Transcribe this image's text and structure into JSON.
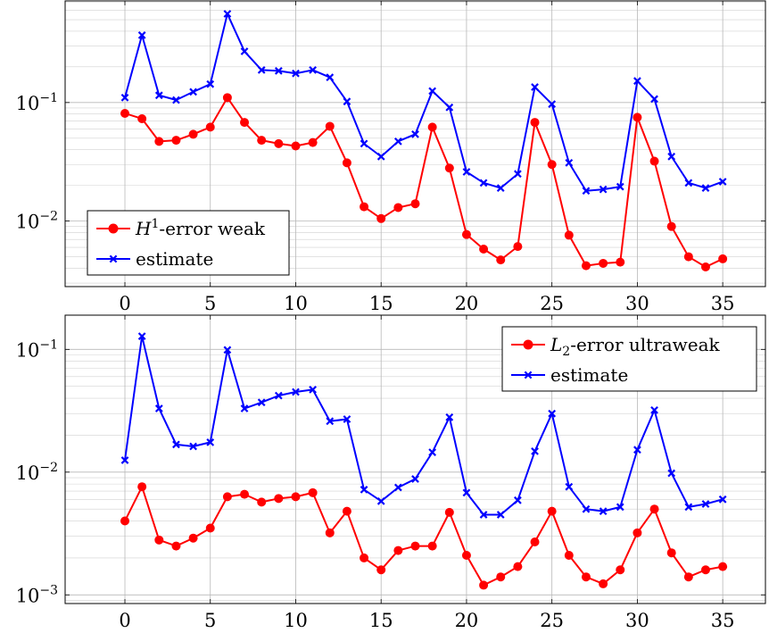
{
  "chart_data": [
    {
      "type": "line",
      "title": "",
      "xlabel": "",
      "ylabel": "",
      "yscale": "log",
      "xlim": [
        -3.5,
        37.5
      ],
      "ylim": [
        0.0028,
        0.72
      ],
      "grid": true,
      "legend_position": "bottom-left",
      "x_ticks": [
        0,
        5,
        10,
        15,
        20,
        25,
        30,
        35
      ],
      "x_tick_labels": [
        "0",
        "5",
        "10",
        "15",
        "20",
        "25",
        "30",
        "35"
      ],
      "y_ticks": [
        0.01,
        0.1
      ],
      "y_tick_labels": [
        {
          "base": "10",
          "exp": "−2"
        },
        {
          "base": "10",
          "exp": "−1"
        }
      ],
      "x": [
        0,
        1,
        2,
        3,
        4,
        5,
        6,
        7,
        8,
        9,
        10,
        11,
        12,
        13,
        14,
        15,
        16,
        17,
        18,
        19,
        20,
        21,
        22,
        23,
        24,
        25,
        26,
        27,
        28,
        29,
        30,
        31,
        32,
        33,
        34,
        35
      ],
      "series": [
        {
          "name_main": "H",
          "name_sup": "1",
          "name_rest": "-error weak",
          "color": "#ff0000",
          "marker": "circle",
          "values": [
            0.081,
            0.073,
            0.047,
            0.048,
            0.054,
            0.062,
            0.11,
            0.068,
            0.048,
            0.045,
            0.043,
            0.046,
            0.063,
            0.031,
            0.0132,
            0.0105,
            0.013,
            0.014,
            0.062,
            0.028,
            0.0077,
            0.0058,
            0.0047,
            0.0061,
            0.068,
            0.03,
            0.0076,
            0.0042,
            0.0044,
            0.0045,
            0.075,
            0.032,
            0.009,
            0.005,
            0.0041,
            0.0048
          ]
        },
        {
          "name_main": "estimate",
          "name_sup": "",
          "name_rest": "",
          "color": "#0000ff",
          "marker": "x",
          "values": [
            0.11,
            0.37,
            0.115,
            0.105,
            0.123,
            0.143,
            0.56,
            0.27,
            0.188,
            0.185,
            0.176,
            0.188,
            0.163,
            0.102,
            0.045,
            0.035,
            0.047,
            0.054,
            0.125,
            0.091,
            0.026,
            0.021,
            0.019,
            0.025,
            0.135,
            0.097,
            0.031,
            0.018,
            0.0185,
            0.0195,
            0.152,
            0.107,
            0.035,
            0.021,
            0.019,
            0.0215
          ]
        }
      ]
    },
    {
      "type": "line",
      "title": "",
      "xlabel": "",
      "ylabel": "",
      "yscale": "log",
      "xlim": [
        -3.5,
        37.5
      ],
      "ylim": [
        0.00085,
        0.19
      ],
      "grid": true,
      "legend_position": "top-right",
      "x_ticks": [
        0,
        5,
        10,
        15,
        20,
        25,
        30,
        35
      ],
      "x_tick_labels": [
        "0",
        "5",
        "10",
        "15",
        "20",
        "25",
        "30",
        "35"
      ],
      "y_ticks": [
        0.001,
        0.01,
        0.1
      ],
      "y_tick_labels": [
        {
          "base": "10",
          "exp": "−3"
        },
        {
          "base": "10",
          "exp": "−2"
        },
        {
          "base": "10",
          "exp": "−1"
        }
      ],
      "x": [
        0,
        1,
        2,
        3,
        4,
        5,
        6,
        7,
        8,
        9,
        10,
        11,
        12,
        13,
        14,
        15,
        16,
        17,
        18,
        19,
        20,
        21,
        22,
        23,
        24,
        25,
        26,
        27,
        28,
        29,
        30,
        31,
        32,
        33,
        34,
        35
      ],
      "series": [
        {
          "name_main": "L",
          "name_sub": "2",
          "name_rest": "-error ultraweak",
          "color": "#ff0000",
          "marker": "circle",
          "values": [
            0.004,
            0.0076,
            0.0028,
            0.0025,
            0.0029,
            0.0035,
            0.0063,
            0.0066,
            0.0057,
            0.0061,
            0.0063,
            0.0068,
            0.0032,
            0.0048,
            0.002,
            0.0016,
            0.0023,
            0.0025,
            0.0025,
            0.0047,
            0.0021,
            0.0012,
            0.0014,
            0.0017,
            0.0027,
            0.0048,
            0.0021,
            0.0014,
            0.00123,
            0.0016,
            0.0032,
            0.005,
            0.0022,
            0.0014,
            0.0016,
            0.0017
          ]
        },
        {
          "name_main": "estimate",
          "name_sub": "",
          "name_rest": "",
          "color": "#0000ff",
          "marker": "x",
          "values": [
            0.0125,
            0.128,
            0.033,
            0.0168,
            0.0162,
            0.0175,
            0.099,
            0.033,
            0.037,
            0.042,
            0.045,
            0.047,
            0.026,
            0.027,
            0.0072,
            0.0058,
            0.0075,
            0.0088,
            0.0145,
            0.028,
            0.0068,
            0.0045,
            0.0045,
            0.0059,
            0.0148,
            0.03,
            0.0076,
            0.005,
            0.0048,
            0.0052,
            0.0152,
            0.032,
            0.0098,
            0.0052,
            0.0055,
            0.006
          ]
        }
      ]
    }
  ]
}
